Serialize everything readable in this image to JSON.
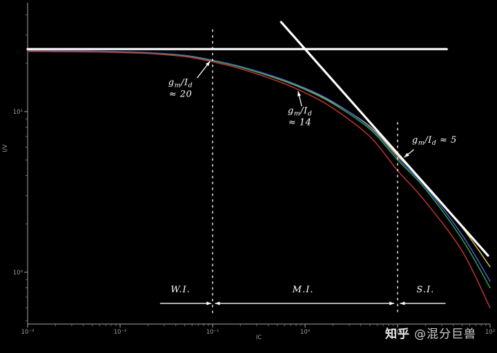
{
  "watermark": {
    "brand": "知乎",
    "handle": "@混分巨兽",
    "color": "#d8d8d8"
  },
  "chart_data": {
    "type": "line",
    "title": "",
    "xlabel": "IC",
    "ylabel": "I/V",
    "x_scale": "log",
    "y_scale": "log",
    "xlim": [
      0.001,
      100
    ],
    "ylim": [
      0.476,
      47.6
    ],
    "grid": false,
    "legend": "none",
    "background": "#000000",
    "axis_color": "#a8a8a8",
    "minor_tick_color": "#6f6f6f",
    "tick_label_color": "#9a9a9a",
    "x_ticks": [
      {
        "value": 0.001,
        "label": "10⁻³"
      },
      {
        "value": 0.01,
        "label": "10⁻²"
      },
      {
        "value": 0.1,
        "label": "10⁻¹"
      },
      {
        "value": 1,
        "label": "10⁰"
      },
      {
        "value": 10,
        "label": "10¹"
      },
      {
        "value": 100,
        "label": "10²"
      }
    ],
    "y_ticks": [
      {
        "value": 10,
        "label": "10¹"
      },
      {
        "value": 1,
        "label": "10⁰"
      }
    ],
    "x": [
      0.001,
      0.002,
      0.005,
      0.01,
      0.02,
      0.05,
      0.1,
      0.2,
      0.5,
      1,
      2,
      5,
      10,
      20,
      50,
      100
    ],
    "series": [
      {
        "name": "gm-id-curve-yellow",
        "color": "#d3c04c",
        "values": [
          23.9,
          23.8,
          23.7,
          23.5,
          23.2,
          22.3,
          20.8,
          19.0,
          16.2,
          13.9,
          11.4,
          8.1,
          5.3,
          3.55,
          1.9,
          1.08
        ]
      },
      {
        "name": "gm-id-curve-blue",
        "color": "#4a5fd8",
        "values": [
          24.0,
          23.9,
          23.8,
          23.6,
          23.3,
          22.4,
          20.9,
          19.1,
          16.3,
          14.0,
          11.5,
          8.0,
          5.15,
          3.4,
          1.7,
          0.88
        ]
      },
      {
        "name": "gm-id-curve-green",
        "color": "#35a148",
        "values": [
          23.8,
          23.7,
          23.6,
          23.4,
          23.1,
          22.2,
          20.7,
          18.9,
          16.0,
          13.7,
          11.2,
          7.8,
          5.0,
          3.3,
          1.6,
          0.8
        ]
      },
      {
        "name": "gm-id-curve-red",
        "color": "#c43232",
        "values": [
          23.7,
          23.6,
          23.5,
          23.3,
          23.0,
          22.0,
          20.4,
          18.5,
          15.5,
          13.1,
          10.5,
          7.0,
          4.3,
          2.75,
          1.35,
          0.6
        ]
      }
    ],
    "asymptotes": {
      "color": "#ffffff",
      "weak_inversion": {
        "value": 24.5,
        "x_from": 0.001,
        "x_to": 34
      },
      "strong_inversion": {
        "from": [
          0.55,
          36.1
        ],
        "to": [
          95,
          1.27
        ]
      }
    },
    "boundaries": {
      "color": "#ffffff",
      "lines": [
        {
          "x": 0.1,
          "y_from": 32.5,
          "y_to": 0.54
        },
        {
          "x": 10,
          "y_from": 8.6,
          "y_to": 0.54
        }
      ]
    },
    "regions": {
      "color": "#ffffff",
      "arrow_y": 0.64,
      "label_y": 0.75,
      "items": [
        {
          "label": "W.I.",
          "from": 0.027,
          "to": 0.097,
          "heads": "end",
          "label_x": 0.045
        },
        {
          "label": "M.I.",
          "from": 0.106,
          "to": 9.2,
          "heads": "both",
          "label_x": 0.95
        },
        {
          "label": "S.I.",
          "from": 10.6,
          "to": 33,
          "heads": "start",
          "label_x": 20
        }
      ]
    },
    "annotations": {
      "color": "#ffffff",
      "items": [
        {
          "lines": [
            "gm/Id",
            "≈ 20"
          ],
          "x": 0.045,
          "y": 13.5,
          "arrow": {
            "from": [
              0.068,
              16.2
            ],
            "to": [
              0.094,
              20.6
            ]
          }
        },
        {
          "lines": [
            "gm/Id",
            "≈ 14"
          ],
          "x": 0.88,
          "y": 9.0,
          "arrow": {
            "from": [
              0.92,
              10.8
            ],
            "to": [
              0.84,
              13.4
            ]
          }
        },
        {
          "lines": [
            "gm/Id ≈ 5"
          ],
          "x": 25,
          "y": 6.4,
          "arrow": {
            "from": [
              15.0,
              5.8
            ],
            "to": [
              11.8,
              5.2
            ]
          }
        }
      ]
    }
  }
}
